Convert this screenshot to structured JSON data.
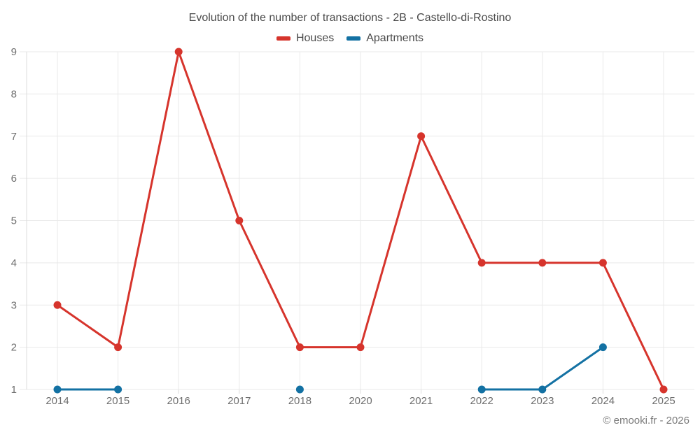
{
  "chart_data": {
    "type": "line",
    "title": "Evolution of the number of transactions - 2B - Castello-di-Rostino",
    "categories": [
      "2014",
      "2015",
      "2016",
      "2017",
      "2018",
      "2020",
      "2021",
      "2022",
      "2023",
      "2024",
      "2025"
    ],
    "series": [
      {
        "name": "Houses",
        "color": "#d6342c",
        "values": [
          3,
          2,
          9,
          5,
          2,
          2,
          7,
          4,
          4,
          4,
          1
        ]
      },
      {
        "name": "Apartments",
        "color": "#1371a3",
        "values": [
          1,
          1,
          null,
          null,
          1,
          null,
          null,
          1,
          1,
          2,
          null
        ]
      }
    ],
    "xlabel": "",
    "ylabel": "",
    "ylim": [
      1,
      9
    ],
    "yticks": [
      1,
      2,
      3,
      4,
      5,
      6,
      7,
      8,
      9
    ],
    "grid": true,
    "legend_position": "top",
    "grid_color": "#e9e9e9",
    "axis_color": "#dcdcdc",
    "tick_label_color": "#6e6e6e",
    "title_color": "#4a4a4a",
    "watermark": "© emooki.fr - 2026"
  }
}
